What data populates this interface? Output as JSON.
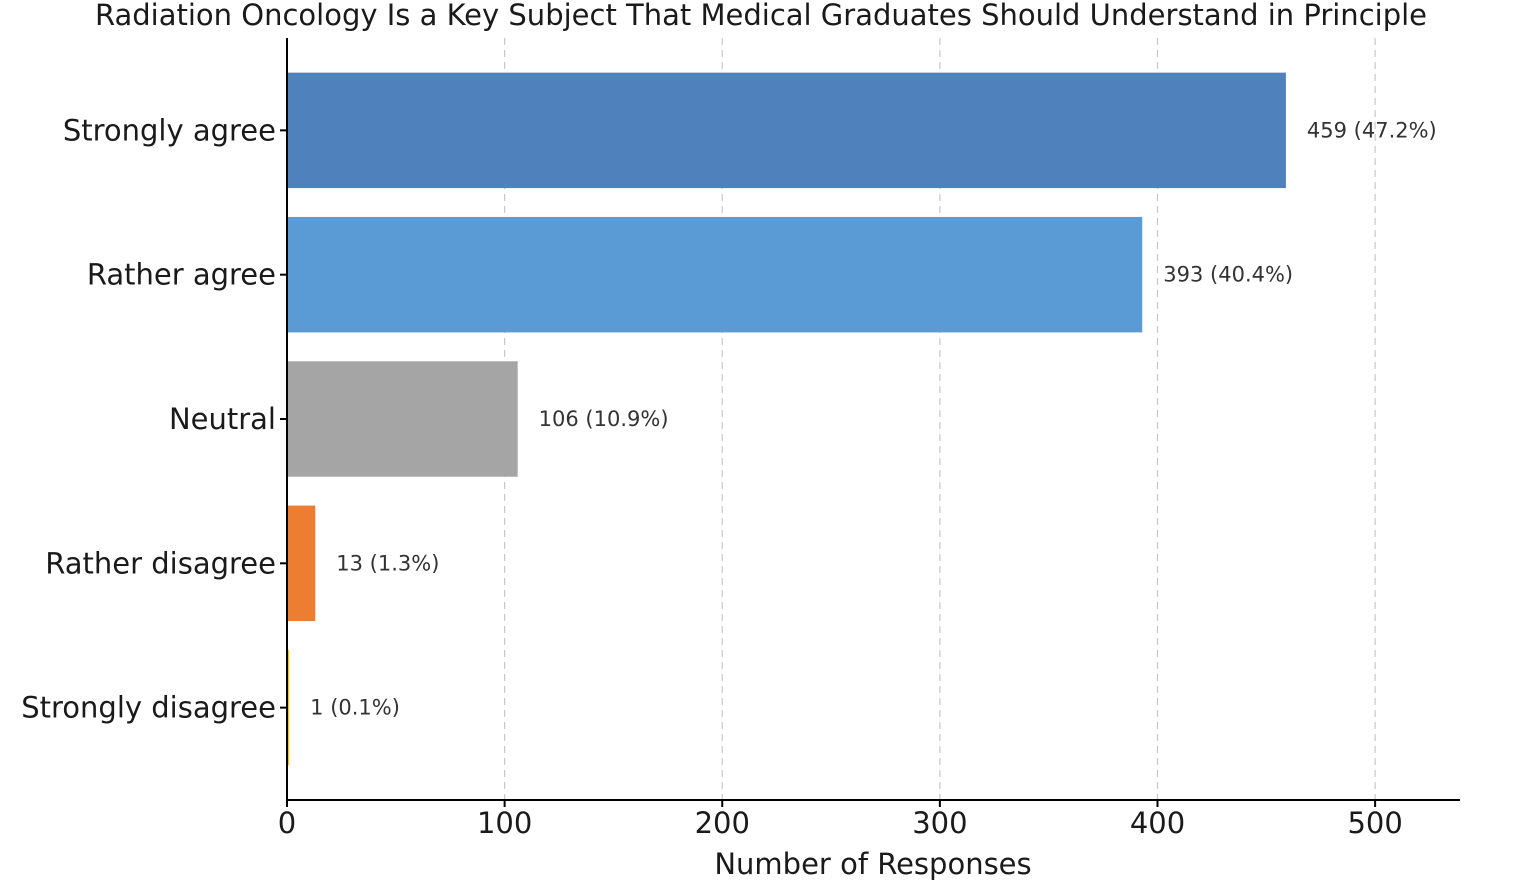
{
  "chart_data": {
    "type": "bar",
    "orientation": "horizontal",
    "title": "Radiation Oncology Is a Key Subject That Medical Graduates Should Understand in Principle",
    "xlabel": "Number of Responses",
    "ylabel": "",
    "categories": [
      "Strongly agree",
      "Rather agree",
      "Neutral",
      "Rather disagree",
      "Strongly disagree"
    ],
    "values": [
      459,
      393,
      106,
      13,
      1
    ],
    "data_labels": [
      "459 (47.2%)",
      "393 (40.4%)",
      "106 (10.9%)",
      "13 (1.3%)",
      "1 (0.1%)"
    ],
    "colors": [
      "#4f81bd",
      "#5b9bd5",
      "#a5a5a5",
      "#ed7d31",
      "#ffc000"
    ],
    "xlim": [
      0,
      539
    ],
    "xticks": [
      0,
      100,
      200,
      300,
      400,
      500
    ],
    "grid": "vertical dashed",
    "legend": "none"
  }
}
